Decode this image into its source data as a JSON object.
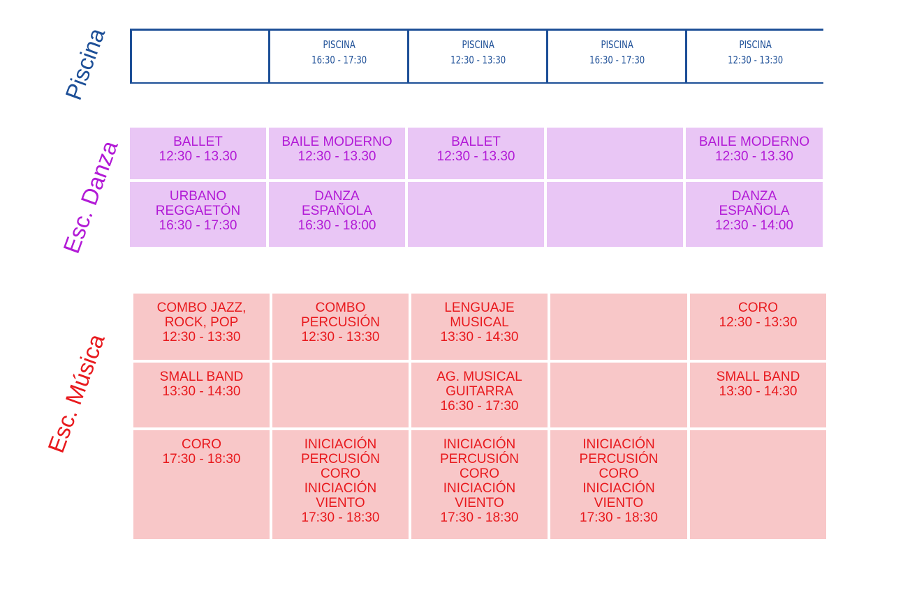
{
  "sections": {
    "pool": {
      "label": "Piscina",
      "color": "#1d4f97"
    },
    "dance": {
      "label": "Esc. Danza",
      "color": "#b21ad6",
      "bg": "#e9c6f5"
    },
    "music": {
      "label": "Esc. Música",
      "color": "#e8191d",
      "bg": "#f8c7c8"
    }
  },
  "pool": {
    "cells": [
      {
        "line1": "",
        "line2": ""
      },
      {
        "line1": "PISCINA",
        "line2": "16:30  -  17:30"
      },
      {
        "line1": "PISCINA",
        "line2": "12:30  -  13:30"
      },
      {
        "line1": "PISCINA",
        "line2": "16:30  -  17:30"
      },
      {
        "line1": "PISCINA",
        "line2": "12:30  -  13:30"
      }
    ]
  },
  "dance": {
    "row1": [
      {
        "l1": "BALLET",
        "l2": "12:30 - 13.30"
      },
      {
        "l1": "BAILE MODERNO",
        "l2": "12:30 - 13.30"
      },
      {
        "l1": "BALLET",
        "l2": "12:30 - 13.30"
      },
      {
        "l1": "",
        "l2": ""
      },
      {
        "l1": "BAILE MODERNO",
        "l2": "12:30 - 13.30"
      }
    ],
    "row2": [
      {
        "l1": "URBANO",
        "l2": "REGGAETÓN",
        "l3": "16:30 - 17:30"
      },
      {
        "l1": "DANZA",
        "l2": "ESPAÑOLA",
        "l3": "16:30 - 18:00"
      },
      {
        "l1": "",
        "l2": "",
        "l3": ""
      },
      {
        "l1": "",
        "l2": "",
        "l3": ""
      },
      {
        "l1": "DANZA",
        "l2": "ESPAÑOLA",
        "l3": "12:30 - 14:00"
      }
    ]
  },
  "music": {
    "row1": [
      {
        "l1": "COMBO JAZZ,",
        "l2": "ROCK, POP",
        "l3": "12:30 - 13:30"
      },
      {
        "l1": "COMBO",
        "l2": "PERCUSIÓN",
        "l3": "12:30 - 13:30"
      },
      {
        "l1": "LENGUAJE",
        "l2": "MUSICAL",
        "l3": "13:30 - 14:30"
      },
      {
        "l1": "",
        "l2": "",
        "l3": ""
      },
      {
        "l1": "CORO",
        "l2": "12:30 - 13:30",
        "l3": ""
      }
    ],
    "row2": [
      {
        "l1": "SMALL BAND",
        "l2": "13:30 - 14:30",
        "l3": ""
      },
      {
        "l1": "",
        "l2": "",
        "l3": ""
      },
      {
        "l1": "AG. MUSICAL",
        "l2": "GUITARRA",
        "l3": "16:30 - 17:30"
      },
      {
        "l1": "",
        "l2": "",
        "l3": ""
      },
      {
        "l1": "SMALL BAND",
        "l2": "13:30 - 14:30",
        "l3": ""
      }
    ],
    "row3": [
      {
        "l1": "CORO",
        "l2": "17:30 - 18:30",
        "l3": "",
        "l4": "",
        "l5": "",
        "l6": ""
      },
      {
        "l1": "INICIACIÓN",
        "l2": "PERCUSIÓN",
        "l3": "CORO",
        "l4": "INICIACIÓN",
        "l5": "VIENTO",
        "l6": "17:30 - 18:30"
      },
      {
        "l1": "INICIACIÓN",
        "l2": "PERCUSIÓN",
        "l3": "CORO",
        "l4": "INICIACIÓN",
        "l5": "VIENTO",
        "l6": "17:30 - 18:30"
      },
      {
        "l1": "INICIACIÓN",
        "l2": "PERCUSIÓN",
        "l3": "CORO",
        "l4": "INICIACIÓN",
        "l5": "VIENTO",
        "l6": "17:30 - 18:30"
      },
      {
        "l1": "",
        "l2": "",
        "l3": "",
        "l4": "",
        "l5": "",
        "l6": ""
      }
    ]
  }
}
